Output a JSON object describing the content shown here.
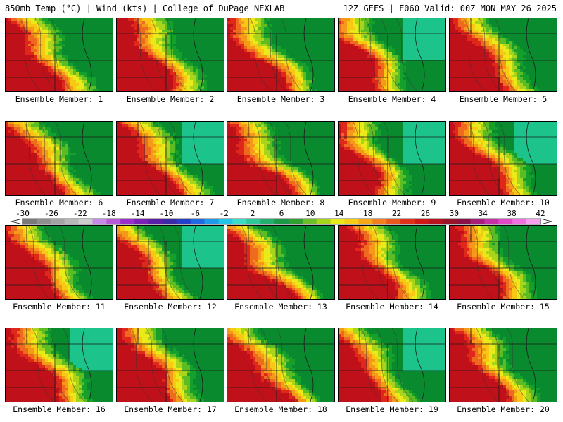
{
  "header": {
    "title": "850mb Temp (°C) | Wind (kts) | College of DuPage NEXLAB",
    "valid": "12Z GEFS | F060 Valid: 00Z MON MAY 26 2025"
  },
  "members": [
    {
      "label": "Ensemble Member: 1",
      "pattern": 0
    },
    {
      "label": "Ensemble Member: 2",
      "pattern": 1
    },
    {
      "label": "Ensemble Member: 3",
      "pattern": 2
    },
    {
      "label": "Ensemble Member: 4",
      "pattern": 3
    },
    {
      "label": "Ensemble Member: 5",
      "pattern": 1
    },
    {
      "label": "Ensemble Member: 6",
      "pattern": 0
    },
    {
      "label": "Ensemble Member: 7",
      "pattern": 4
    },
    {
      "label": "Ensemble Member: 8",
      "pattern": 2
    },
    {
      "label": "Ensemble Member: 9",
      "pattern": 3
    },
    {
      "label": "Ensemble Member: 10",
      "pattern": 4
    },
    {
      "label": "Ensemble Member: 11",
      "pattern": 0
    },
    {
      "label": "Ensemble Member: 12",
      "pattern": 3
    },
    {
      "label": "Ensemble Member: 13",
      "pattern": 2
    },
    {
      "label": "Ensemble Member: 14",
      "pattern": 1
    },
    {
      "label": "Ensemble Member: 15",
      "pattern": 0
    },
    {
      "label": "Ensemble Member: 16",
      "pattern": 4
    },
    {
      "label": "Ensemble Member: 17",
      "pattern": 1
    },
    {
      "label": "Ensemble Member: 18",
      "pattern": 2
    },
    {
      "label": "Ensemble Member: 19",
      "pattern": 3
    },
    {
      "label": "Ensemble Member: 20",
      "pattern": 0
    }
  ],
  "legend": {
    "ticks": [
      "-30",
      "-26",
      "-22",
      "-18",
      "-14",
      "-10",
      "-6",
      "-2",
      "2",
      "6",
      "10",
      "14",
      "18",
      "22",
      "26",
      "30",
      "34",
      "38",
      "42"
    ],
    "colors": [
      "#7a7a7a",
      "#8f8f8f",
      "#a3a3a3",
      "#b8b8b8",
      "#cccccc",
      "#c88ae8",
      "#b45ad8",
      "#9a2fc9",
      "#7a20b8",
      "#5a1ea8",
      "#3a2aa8",
      "#2240c8",
      "#1e6ae0",
      "#1e9ae8",
      "#22c4e8",
      "#3cdcc8",
      "#2ec89a",
      "#22b070",
      "#1a9a48",
      "#30a030",
      "#6cbf28",
      "#a8d41c",
      "#e8e81a",
      "#f6cc14",
      "#f6a818",
      "#f08020",
      "#e85a1c",
      "#e0301a",
      "#d01818",
      "#b81420",
      "#981428",
      "#8a1046",
      "#a81e78",
      "#c830a8",
      "#e048c8",
      "#f070e0",
      "#f8a0ee"
    ]
  }
}
